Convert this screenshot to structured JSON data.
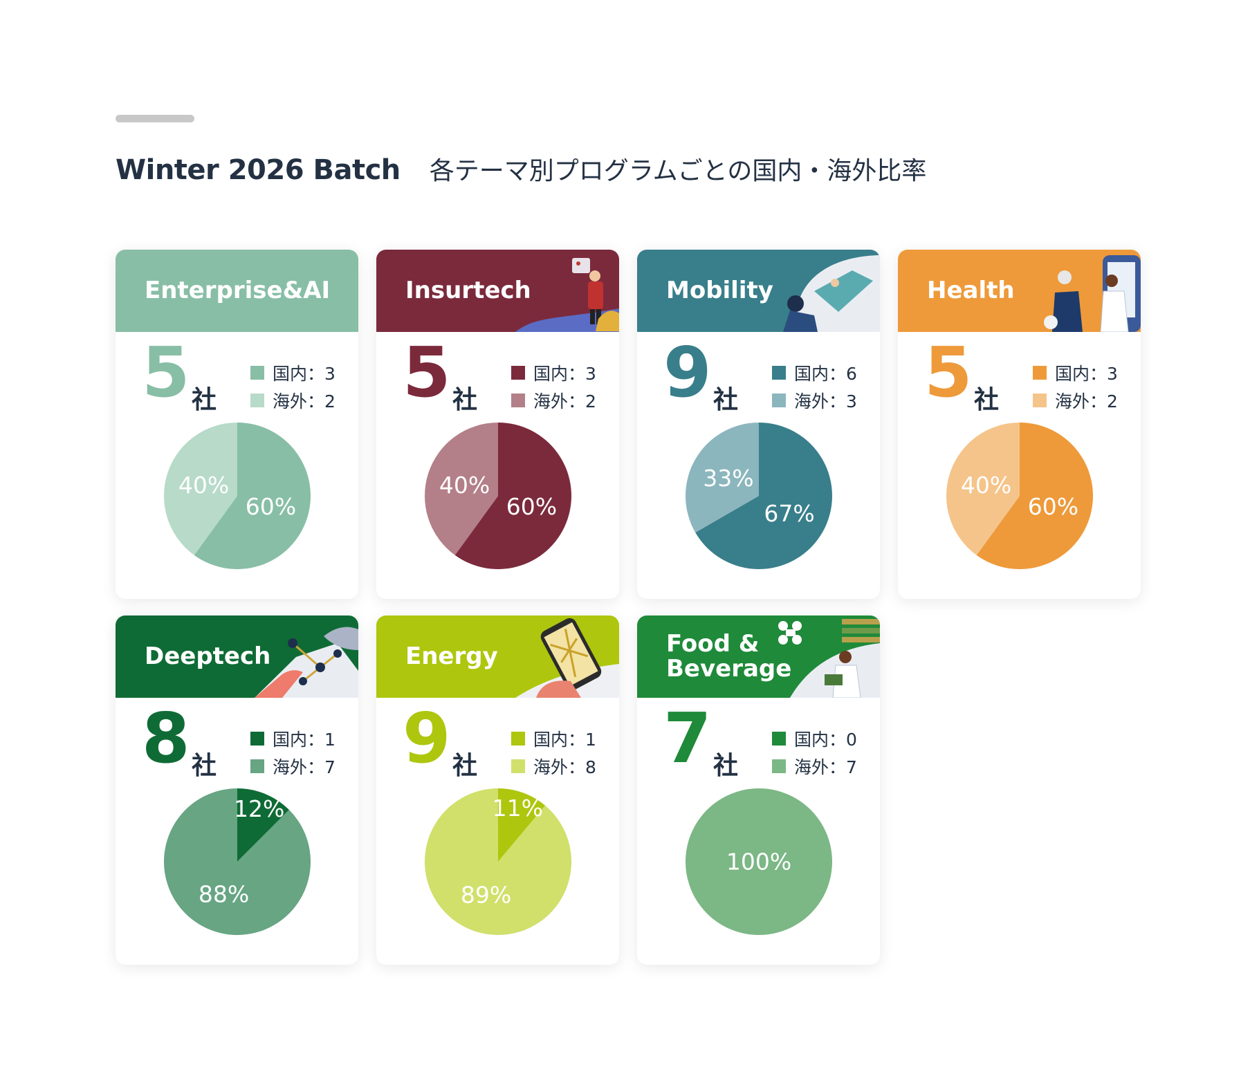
{
  "header": {
    "batch": "Winter 2026 Batch",
    "subtitle": "各テーマ別プログラムごとの国内・海外比率"
  },
  "units": {
    "company": "社"
  },
  "cards": [
    {
      "title": "Enterprise&AI",
      "total": "5",
      "domestic_label": "国内：3",
      "overseas_label": "海外：2",
      "header_color": "#88bea6",
      "domestic_color": "#88bea6",
      "overseas_color": "#b7dac9",
      "illustration": "none"
    },
    {
      "title": "Insurtech",
      "total": "5",
      "domestic_label": "国内：3",
      "overseas_label": "海外：2",
      "header_color": "#7b2a3c",
      "domestic_color": "#7b2a3c",
      "overseas_color": "#b37f88",
      "illustration": "insurance-person-car"
    },
    {
      "title": "Mobility",
      "total": "9",
      "domestic_label": "国内：6",
      "overseas_label": "海外：3",
      "header_color": "#397e8b",
      "domestic_color": "#397e8b",
      "overseas_color": "#8bb6bd",
      "illustration": "driver-vehicle"
    },
    {
      "title": "Health",
      "total": "5",
      "domestic_label": "国内：3",
      "overseas_label": "海外：2",
      "header_color": "#ee9a3a",
      "domestic_color": "#ee9a3a",
      "overseas_color": "#f5c48a",
      "illustration": "doctor-patient"
    },
    {
      "title": "Deeptech",
      "total": "8",
      "domestic_label": "国内：1",
      "overseas_label": "海外：7",
      "header_color": "#0f6b35",
      "domestic_color": "#0f6b35",
      "overseas_color": "#67a583",
      "illustration": "robot-hand-molecule"
    },
    {
      "title": "Energy",
      "total": "9",
      "domestic_label": "国内：1",
      "overseas_label": "海外：8",
      "header_color": "#aec60d",
      "domestic_color": "#aec60d",
      "overseas_color": "#d0e06b",
      "illustration": "hand-phone-map"
    },
    {
      "title": "Food &\nBeverage",
      "total": "7",
      "domestic_label": "国内：0",
      "overseas_label": "海外：7",
      "header_color": "#1f8a3a",
      "domestic_color": "#1f8a3a",
      "overseas_color": "#7cb786",
      "illustration": "drone-farmer"
    }
  ],
  "chart_data": [
    {
      "type": "pie",
      "title": "Enterprise&AI",
      "categories": [
        "国内",
        "海外"
      ],
      "values": [
        3,
        2
      ],
      "labels": [
        "60%",
        "40%"
      ]
    },
    {
      "type": "pie",
      "title": "Insurtech",
      "categories": [
        "国内",
        "海外"
      ],
      "values": [
        3,
        2
      ],
      "labels": [
        "60%",
        "40%"
      ]
    },
    {
      "type": "pie",
      "title": "Mobility",
      "categories": [
        "国内",
        "海外"
      ],
      "values": [
        6,
        3
      ],
      "labels": [
        "67%",
        "33%"
      ]
    },
    {
      "type": "pie",
      "title": "Health",
      "categories": [
        "国内",
        "海外"
      ],
      "values": [
        3,
        2
      ],
      "labels": [
        "60%",
        "40%"
      ]
    },
    {
      "type": "pie",
      "title": "Deeptech",
      "categories": [
        "国内",
        "海外"
      ],
      "values": [
        1,
        7
      ],
      "labels": [
        "12%",
        "88%"
      ]
    },
    {
      "type": "pie",
      "title": "Energy",
      "categories": [
        "国内",
        "海外"
      ],
      "values": [
        1,
        8
      ],
      "labels": [
        "11%",
        "89%"
      ]
    },
    {
      "type": "pie",
      "title": "Food & Beverage",
      "categories": [
        "国内",
        "海外"
      ],
      "values": [
        0,
        7
      ],
      "labels": [
        "",
        "100%"
      ]
    }
  ]
}
